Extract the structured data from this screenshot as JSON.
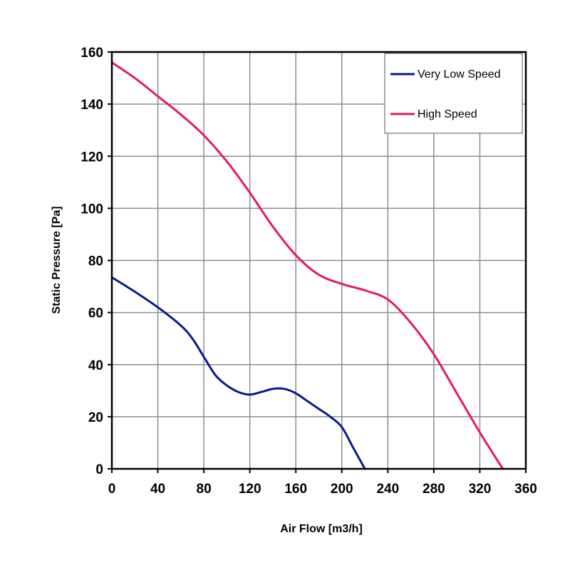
{
  "chart_data": {
    "type": "line",
    "xlabel": "Air Flow [m3/h]",
    "ylabel": "Static Pressure [Pa]",
    "xlim": [
      0,
      360
    ],
    "ylim": [
      0,
      160
    ],
    "xticks": [
      0,
      40,
      80,
      120,
      160,
      200,
      240,
      280,
      320,
      360
    ],
    "yticks": [
      0,
      20,
      40,
      60,
      80,
      100,
      120,
      140,
      160
    ],
    "grid": true,
    "legend_position": "top-right",
    "series": [
      {
        "name": "Very Low Speed",
        "color": "#0a1a8c",
        "x": [
          0,
          20,
          40,
          60,
          70,
          80,
          90,
          100,
          110,
          120,
          130,
          140,
          150,
          160,
          170,
          180,
          190,
          200,
          210,
          220
        ],
        "y": [
          73.5,
          68,
          62,
          55,
          50,
          43,
          36,
          32,
          29.5,
          28.5,
          29.5,
          30.7,
          30.7,
          29,
          26,
          23,
          20,
          16,
          8,
          0
        ]
      },
      {
        "name": "High Speed",
        "color": "#e6186a",
        "x": [
          0,
          20,
          40,
          60,
          80,
          100,
          120,
          140,
          160,
          180,
          200,
          220,
          240,
          260,
          280,
          300,
          320,
          340
        ],
        "y": [
          156,
          150,
          143,
          136,
          128,
          118,
          106,
          93,
          82,
          74.5,
          71,
          68.5,
          65,
          56,
          44,
          29,
          14,
          0
        ]
      }
    ]
  }
}
